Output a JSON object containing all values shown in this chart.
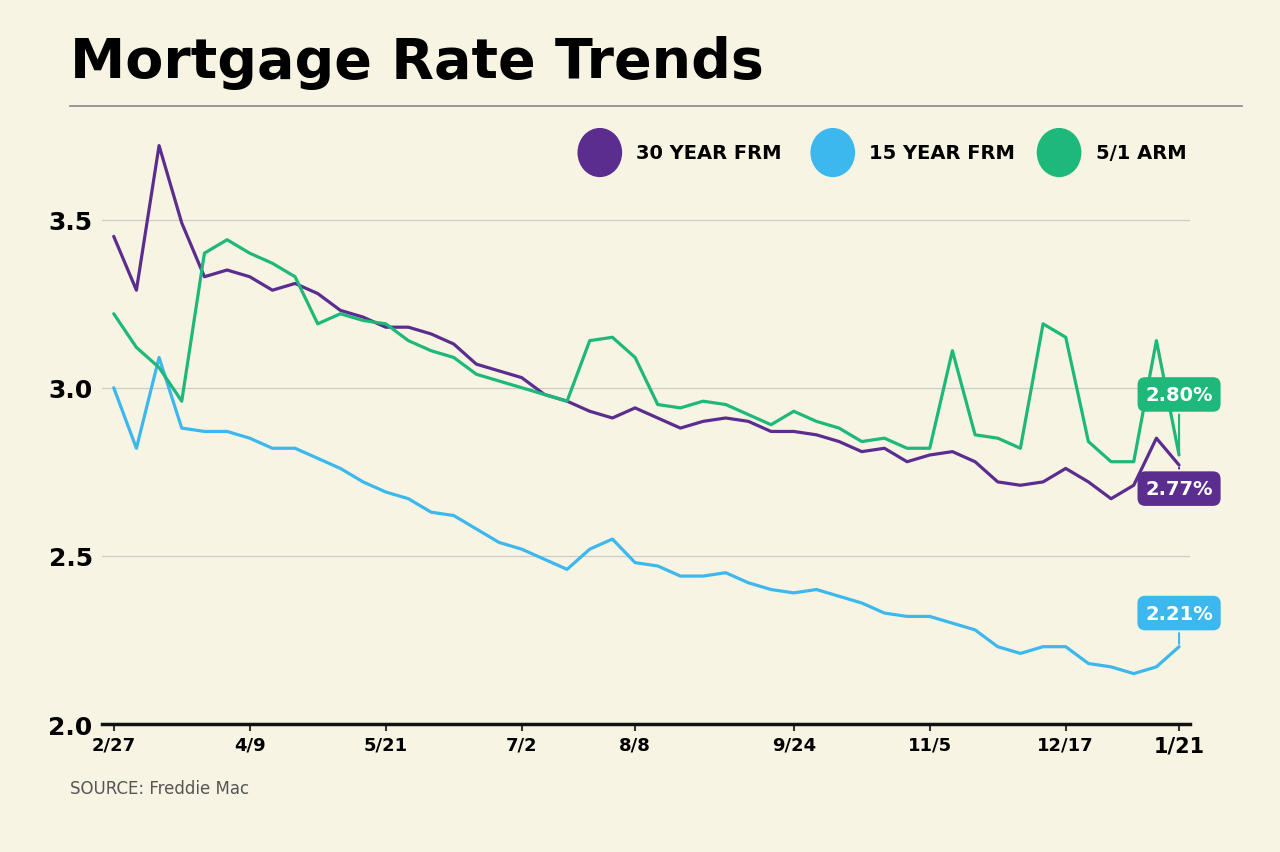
{
  "title": "Mortgage Rate Trends",
  "background_color": "#f7f4e3",
  "source_text": "SOURCE: Freddie Mac",
  "ylim": [
    2.0,
    3.75
  ],
  "yticks": [
    2.0,
    2.5,
    3.0,
    3.5
  ],
  "xtick_labels": [
    "2/27",
    "4/9",
    "5/21",
    "7/2",
    "8/8",
    "9/24",
    "11/5",
    "12/17",
    "1/21"
  ],
  "xtick_positions": [
    0,
    6,
    12,
    18,
    23,
    30,
    36,
    42,
    47
  ],
  "colors": {
    "frm30": "#5b2d8e",
    "frm15": "#3cb8ee",
    "arm51": "#1db87a"
  },
  "legend_labels": [
    "30 YEAR FRM",
    "15 YEAR FRM",
    "5/1 ARM"
  ],
  "frm30": [
    3.45,
    3.29,
    3.72,
    3.49,
    3.33,
    3.35,
    3.33,
    3.29,
    3.31,
    3.28,
    3.23,
    3.21,
    3.18,
    3.18,
    3.16,
    3.13,
    3.07,
    3.05,
    3.03,
    2.98,
    2.96,
    2.93,
    2.91,
    2.94,
    2.91,
    2.88,
    2.9,
    2.91,
    2.9,
    2.87,
    2.87,
    2.86,
    2.84,
    2.81,
    2.82,
    2.78,
    2.8,
    2.81,
    2.78,
    2.72,
    2.71,
    2.72,
    2.76,
    2.72,
    2.67,
    2.71,
    2.85,
    2.77
  ],
  "frm15": [
    3.0,
    2.82,
    3.09,
    2.88,
    2.87,
    2.87,
    2.85,
    2.82,
    2.82,
    2.79,
    2.76,
    2.72,
    2.69,
    2.67,
    2.63,
    2.62,
    2.58,
    2.54,
    2.52,
    2.49,
    2.46,
    2.52,
    2.55,
    2.48,
    2.47,
    2.44,
    2.44,
    2.45,
    2.42,
    2.4,
    2.39,
    2.4,
    2.38,
    2.36,
    2.33,
    2.32,
    2.32,
    2.3,
    2.28,
    2.23,
    2.21,
    2.23,
    2.23,
    2.18,
    2.17,
    2.15,
    2.17,
    2.23
  ],
  "arm51": [
    3.22,
    3.12,
    3.06,
    2.96,
    3.4,
    3.44,
    3.4,
    3.37,
    3.33,
    3.19,
    3.22,
    3.2,
    3.19,
    3.14,
    3.11,
    3.09,
    3.04,
    3.02,
    3.0,
    2.98,
    2.96,
    3.14,
    3.15,
    3.09,
    2.95,
    2.94,
    2.96,
    2.95,
    2.92,
    2.89,
    2.93,
    2.9,
    2.88,
    2.84,
    2.85,
    2.82,
    2.82,
    3.11,
    2.86,
    2.85,
    2.82,
    3.19,
    3.15,
    2.84,
    2.78,
    2.78,
    3.14,
    2.8
  ]
}
